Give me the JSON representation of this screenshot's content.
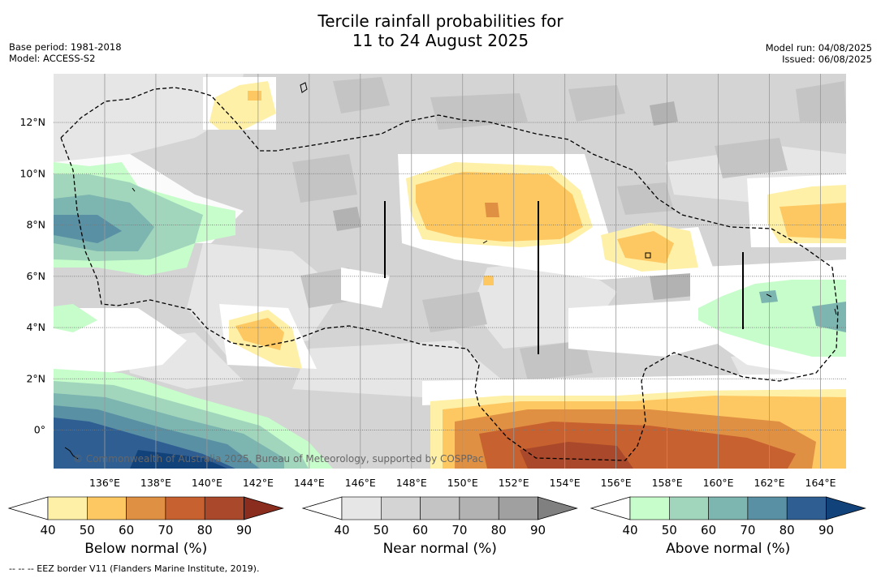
{
  "title_line1": "Tercile rainfall probabilities for",
  "title_line2": "11 to 24 August 2025",
  "base_period": "Base period: 1981-2018",
  "model": "Model: ACCESS-S2",
  "model_run": "Model run: 04/08/2025",
  "issued": "Issued: 06/08/2025",
  "copyright": "© Commonwealth of Australia 2025, Bureau of Meteorology, supported by COSPPac",
  "footnote": "-- -- -- EEZ border V11 (Flanders Marine Institute, 2019).",
  "map": {
    "lon_labels": [
      "136°E",
      "138°E",
      "140°E",
      "142°E",
      "144°E",
      "146°E",
      "148°E",
      "150°E",
      "152°E",
      "154°E",
      "156°E",
      "158°E",
      "160°E",
      "162°E",
      "164°E"
    ],
    "lon_values": [
      136,
      138,
      140,
      142,
      144,
      146,
      148,
      150,
      152,
      154,
      156,
      158,
      160,
      162,
      164
    ],
    "lat_labels": [
      "12°N",
      "10°N",
      "8°N",
      "6°N",
      "4°N",
      "2°N",
      "0°"
    ],
    "lat_values": [
      12,
      10,
      8,
      6,
      4,
      2,
      0
    ],
    "lon_range": [
      134.0,
      165.0
    ],
    "lat_range": [
      -1.5,
      13.9
    ]
  },
  "colorbars": [
    {
      "label": "Below normal (%)",
      "ticks": [
        "40",
        "50",
        "60",
        "70",
        "80",
        "90"
      ],
      "colors": [
        "#ffffff",
        "#fff0a8",
        "#fdc862",
        "#df9043",
        "#c7612f",
        "#a9482a",
        "#8a2d1e"
      ]
    },
    {
      "label": "Near normal (%)",
      "ticks": [
        "40",
        "50",
        "60",
        "70",
        "80",
        "90"
      ],
      "colors": [
        "#ffffff",
        "#e6e6e6",
        "#d4d4d4",
        "#c4c4c4",
        "#b2b2b2",
        "#a0a0a0",
        "#808080"
      ]
    },
    {
      "label": "Above normal (%)",
      "ticks": [
        "40",
        "50",
        "60",
        "70",
        "80",
        "90"
      ],
      "colors": [
        "#ffffff",
        "#c7fdcb",
        "#a2d6bc",
        "#7db5b0",
        "#5a90a4",
        "#2f5f92",
        "#12427a"
      ]
    }
  ]
}
